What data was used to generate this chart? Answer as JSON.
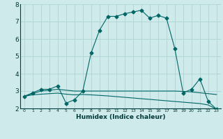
{
  "title": "",
  "xlabel": "Humidex (Indice chaleur)",
  "ylabel": "",
  "background_color": "#ceeaea",
  "grid_color": "#aed4d4",
  "line_color": "#006666",
  "x_values": [
    0,
    1,
    2,
    3,
    4,
    5,
    6,
    7,
    8,
    9,
    10,
    11,
    12,
    13,
    14,
    15,
    16,
    17,
    18,
    19,
    20,
    21,
    22,
    23
  ],
  "series1": [
    2.7,
    2.9,
    3.1,
    3.1,
    3.3,
    2.3,
    2.5,
    3.0,
    5.2,
    6.5,
    7.3,
    7.3,
    7.45,
    7.55,
    7.65,
    7.2,
    7.35,
    7.2,
    5.45,
    2.9,
    3.1,
    3.7,
    2.4,
    1.95
  ],
  "series2": [
    2.7,
    2.85,
    3.0,
    3.05,
    3.1,
    3.05,
    3.0,
    3.0,
    3.0,
    3.0,
    3.0,
    3.0,
    3.0,
    3.0,
    3.0,
    3.0,
    3.0,
    3.0,
    3.0,
    2.98,
    2.95,
    2.9,
    2.85,
    2.8
  ],
  "series3": [
    2.7,
    2.78,
    2.82,
    2.85,
    2.88,
    2.82,
    2.78,
    2.8,
    2.78,
    2.75,
    2.72,
    2.68,
    2.64,
    2.6,
    2.56,
    2.52,
    2.48,
    2.44,
    2.4,
    2.36,
    2.32,
    2.28,
    2.2,
    1.95
  ],
  "ylim": [
    2.0,
    8.0
  ],
  "xlim": [
    -0.5,
    23.5
  ],
  "yticks": [
    2,
    3,
    4,
    5,
    6,
    7,
    8
  ],
  "xticks": [
    0,
    1,
    2,
    3,
    4,
    5,
    6,
    7,
    8,
    9,
    10,
    11,
    12,
    13,
    14,
    15,
    16,
    17,
    18,
    19,
    20,
    21,
    22,
    23
  ]
}
